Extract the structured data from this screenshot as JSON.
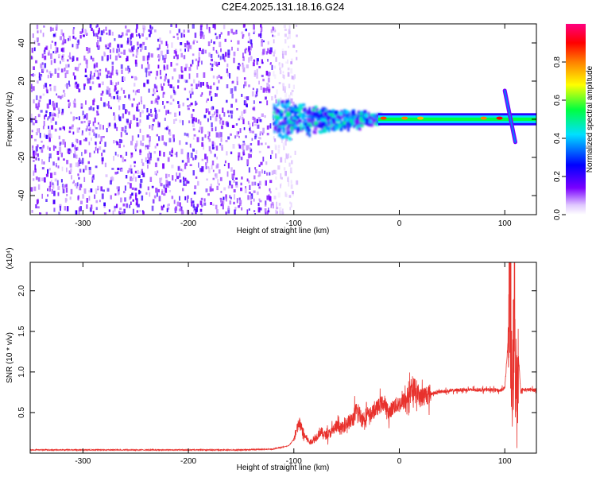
{
  "title": "C2E4.2025.131.18.16.G24",
  "colors": {
    "frame": "#000000",
    "background_spectrogram": "#ffffff",
    "snr_line": "#e8312c"
  },
  "chart_data": [
    {
      "type": "heatmap",
      "title": "C2E4.2025.131.18.16.G24",
      "xlabel": "Height of straight line (km)",
      "ylabel": "Frequency (Hz)",
      "xlim": [
        -350,
        130
      ],
      "ylim": [
        -50,
        50
      ],
      "xticks": [
        -300,
        -200,
        -100,
        0,
        100
      ],
      "yticks": [
        -40,
        -20,
        0,
        20,
        40
      ],
      "xtick_labels": [
        "-300",
        "-200",
        "-100",
        "0",
        "100"
      ],
      "ytick_labels": [
        "-40",
        "-20",
        "0",
        "20",
        "40"
      ],
      "colorbar": {
        "label": "Normalized spectral amplitude",
        "range": [
          0.0,
          1.0
        ],
        "ticks": [
          0.0,
          0.2,
          0.4,
          0.6,
          0.8
        ],
        "tick_labels": [
          "0.0",
          "0.2",
          "0.4",
          "0.6",
          "0.8"
        ],
        "colormap": [
          "#ffffff",
          "#7a00ff",
          "#0000ff",
          "#00e0ff",
          "#00ff40",
          "#ffff00",
          "#ff0000",
          "#ff0080"
        ]
      },
      "regions": [
        {
          "x_range": [
            -350,
            -120
          ],
          "freq_range": [
            -50,
            50
          ],
          "amplitude": 0.15,
          "description": "broadband noise"
        },
        {
          "x_range": [
            -120,
            -20
          ],
          "freq_range": [
            -12,
            12
          ],
          "amplitude": 0.45,
          "description": "converging signal"
        },
        {
          "x_range": [
            -20,
            130
          ],
          "freq_range": [
            -2,
            2
          ],
          "amplitude": 0.55,
          "description": "narrow carrier"
        },
        {
          "x_range": [
            100,
            110
          ],
          "freq_range": [
            -12,
            15
          ],
          "amplitude": 0.35,
          "description": "frequency sweep"
        }
      ],
      "peak_points": [
        {
          "x": -15,
          "freq": 1,
          "amplitude": 0.85
        },
        {
          "x": 5,
          "freq": 1,
          "amplitude": 0.8
        },
        {
          "x": 20,
          "freq": 1,
          "amplitude": 0.75
        },
        {
          "x": 80,
          "freq": 1,
          "amplitude": 0.8
        },
        {
          "x": 95,
          "freq": 1,
          "amplitude": 0.9
        }
      ]
    },
    {
      "type": "line",
      "xlabel": "Height of straight line (km)",
      "ylabel": "SNR (10 * v/v)",
      "y_multiplier": "(x10⁴)",
      "xlim": [
        -350,
        130
      ],
      "ylim": [
        0,
        2.35
      ],
      "xticks": [
        -300,
        -200,
        -100,
        0,
        100
      ],
      "yticks": [
        0.5,
        1.0,
        1.5,
        2.0
      ],
      "xtick_labels": [
        "-300",
        "-200",
        "-100",
        "0",
        "100"
      ],
      "ytick_labels": [
        "0.5",
        "1.0",
        "1.5",
        "2.0"
      ],
      "series": [
        {
          "x": [
            -350,
            -300,
            -250,
            -200,
            -150,
            -120,
            -105,
            -100,
            -95,
            -90,
            -85,
            -80,
            -75,
            -70,
            -65,
            -60,
            -55,
            -50,
            -45,
            -40,
            -35,
            -30,
            -25,
            -20,
            -15,
            -10,
            -5,
            0,
            5,
            10,
            15,
            20,
            25,
            30,
            40,
            50,
            60,
            70,
            80,
            90,
            95,
            100,
            103,
            105,
            107,
            109,
            111,
            113,
            115,
            120,
            130
          ],
          "y": [
            0.04,
            0.04,
            0.04,
            0.04,
            0.04,
            0.05,
            0.09,
            0.17,
            0.37,
            0.22,
            0.13,
            0.17,
            0.27,
            0.22,
            0.25,
            0.33,
            0.3,
            0.37,
            0.4,
            0.52,
            0.42,
            0.47,
            0.5,
            0.57,
            0.62,
            0.5,
            0.58,
            0.6,
            0.65,
            0.73,
            0.8,
            0.68,
            0.72,
            0.73,
            0.76,
            0.77,
            0.78,
            0.78,
            0.78,
            0.78,
            0.77,
            0.8,
            1.35,
            2.3,
            0.55,
            1.6,
            0.75,
            1.2,
            0.78,
            0.78,
            0.78
          ]
        }
      ],
      "spike_bands": [
        {
          "x_range": [
            -100,
            -30
          ],
          "amplitude_frac": 0.35
        },
        {
          "x_range": [
            -30,
            30
          ],
          "amplitude_frac": 0.25
        },
        {
          "x_range": [
            103,
            113
          ],
          "amplitude_frac": 1.0
        }
      ]
    }
  ]
}
